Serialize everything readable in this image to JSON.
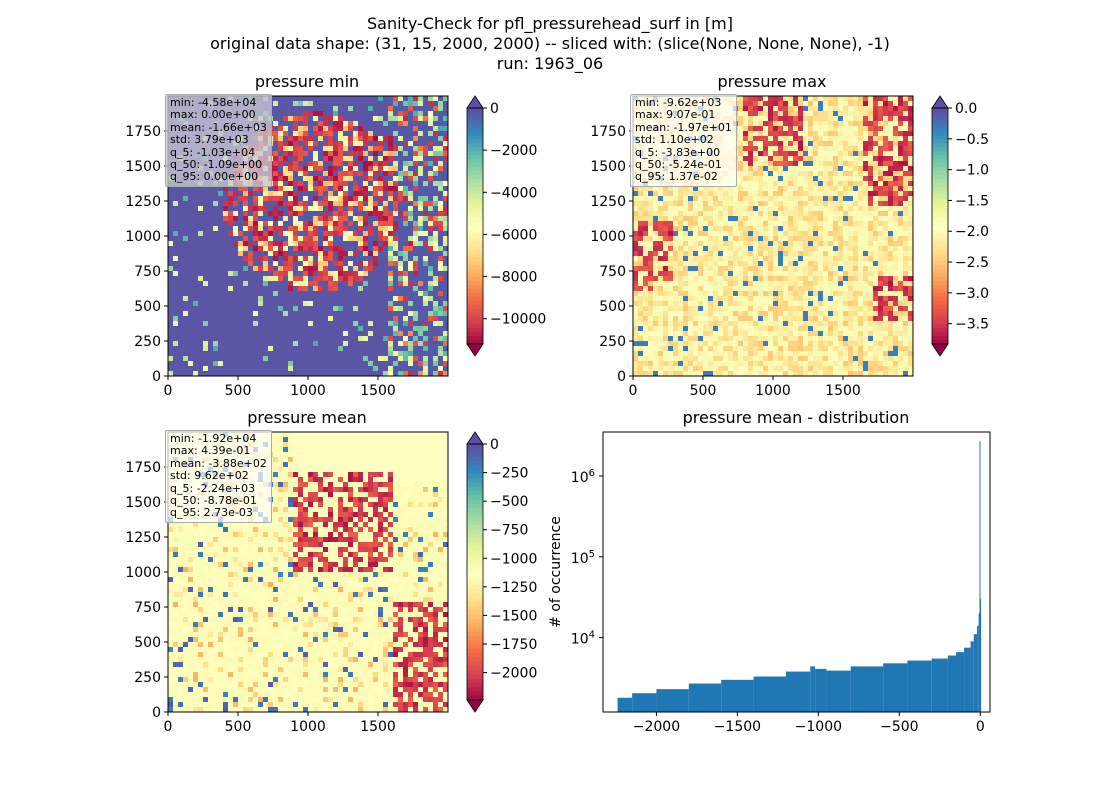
{
  "title_lines": [
    "Sanity-Check for pfl_pressurehead_surf in [m]",
    "original data shape: (31, 15, 2000, 2000) -- sliced with: (slice(None, None, None), -1)",
    "run: 1963_06"
  ],
  "chart_data": [
    {
      "type": "heatmap",
      "title": "pressure min",
      "colormap": "Spectral",
      "colorbar_extend": "both",
      "xlim": [
        0,
        2000
      ],
      "ylim": [
        0,
        2000
      ],
      "x_ticks": [
        "0",
        "500",
        "1000",
        "1500"
      ],
      "y_ticks": [
        "0",
        "250",
        "500",
        "750",
        "1000",
        "1250",
        "1500",
        "1750"
      ],
      "colorbar_range": [
        -11200,
        0
      ],
      "colorbar_ticks": [
        "0",
        "−2000",
        "−4000",
        "−6000",
        "−8000",
        "−10000"
      ],
      "stats": [
        "min: -4.58e+04",
        "max: 0.00e+00",
        "mean: -1.66e+03",
        "std: 3.79e+03",
        "q_5: -1.03e+04",
        "q_50: -1.09e+00",
        "q_95: 0.00e+00"
      ]
    },
    {
      "type": "heatmap",
      "title": "pressure max",
      "colormap": "Spectral",
      "colorbar_extend": "both",
      "xlim": [
        0,
        2000
      ],
      "ylim": [
        0,
        2000
      ],
      "x_ticks": [
        "0",
        "500",
        "1000",
        "1500"
      ],
      "y_ticks": [
        "0",
        "250",
        "500",
        "750",
        "1000",
        "1250",
        "1500",
        "1750"
      ],
      "colorbar_range": [
        -3.83,
        0
      ],
      "colorbar_ticks": [
        "0.0",
        "−0.5",
        "−1.0",
        "−1.5",
        "−2.0",
        "−2.5",
        "−3.0",
        "−3.5"
      ],
      "stats": [
        "min: -9.62e+03",
        "max: 9.07e-01",
        "mean: -1.97e+01",
        "std: 1.10e+02",
        "q_5: -3.83e+00",
        "q_50: -5.24e-01",
        "q_95: 1.37e-02"
      ]
    },
    {
      "type": "heatmap",
      "title": "pressure mean",
      "colormap": "Spectral",
      "colorbar_extend": "both",
      "xlim": [
        0,
        2000
      ],
      "ylim": [
        0,
        2000
      ],
      "x_ticks": [
        "0",
        "500",
        "1000",
        "1500"
      ],
      "y_ticks": [
        "0",
        "250",
        "500",
        "750",
        "1000",
        "1250",
        "1500",
        "1750"
      ],
      "colorbar_range": [
        -2240,
        0
      ],
      "colorbar_ticks": [
        "0",
        "−250",
        "−500",
        "−750",
        "−1000",
        "−1250",
        "−1500",
        "−1750",
        "−2000"
      ],
      "stats": [
        "min: -1.92e+04",
        "max: 4.39e-01",
        "mean: -3.88e+02",
        "std: 9.62e+02",
        "q_5: -2.24e+03",
        "q_50: -8.78e-01",
        "q_95: 2.73e-03"
      ]
    },
    {
      "type": "bar",
      "title": "pressure mean - distribution",
      "ylabel": "# of occurrence",
      "yscale": "log",
      "color": "#1f77b4",
      "x_ticks": [
        "−2000",
        "−1500",
        "−1000",
        "−500",
        "0"
      ],
      "y_ticks": [
        "10^4",
        "10^5",
        "10^6"
      ],
      "xlim": [
        -2330,
        60
      ],
      "ylim": [
        1200,
        3500000
      ],
      "bins_x": [
        -2240,
        -2150,
        -2000,
        -1800,
        -1600,
        -1400,
        -1200,
        -1050,
        -1020,
        -950,
        -800,
        -600,
        -450,
        -300,
        -200,
        -150,
        -100,
        -60,
        -40,
        -20,
        -10,
        -5,
        -2,
        -1,
        0
      ],
      "counts": [
        1800,
        2050,
        2300,
        2700,
        3000,
        3300,
        3800,
        4400,
        4100,
        3900,
        4400,
        4800,
        5200,
        5500,
        6000,
        6600,
        7500,
        9000,
        11000,
        14000,
        20000,
        2700000,
        30000,
        20000,
        0
      ]
    }
  ]
}
